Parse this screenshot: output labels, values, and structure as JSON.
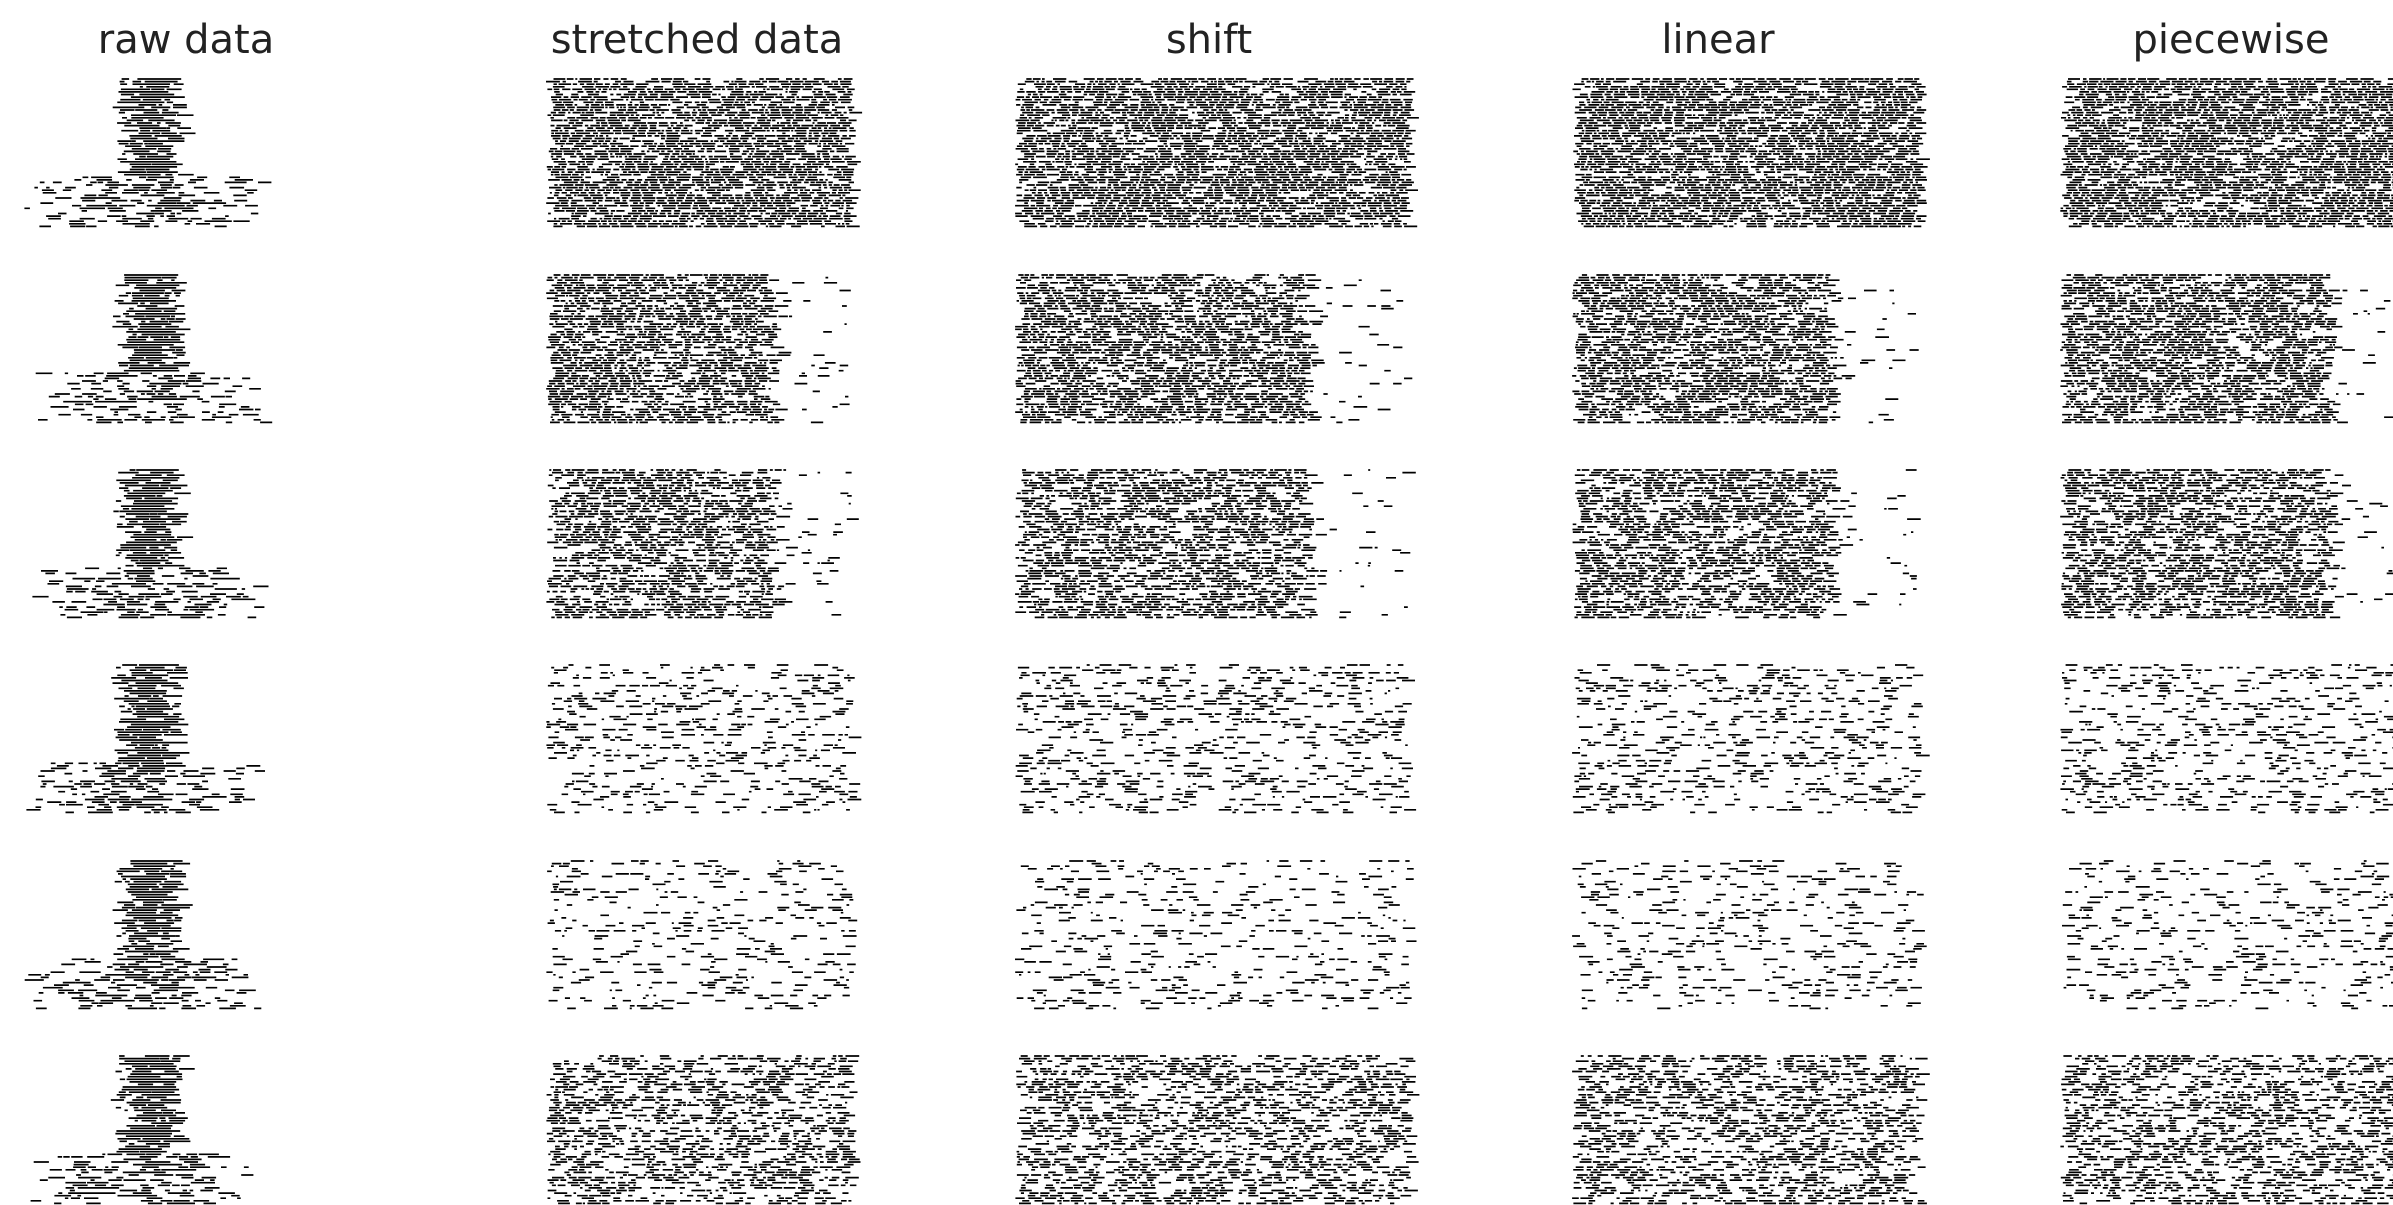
{
  "titles": [
    "raw data",
    "stretched data",
    "shift",
    "linear",
    "piecewise"
  ]
}
